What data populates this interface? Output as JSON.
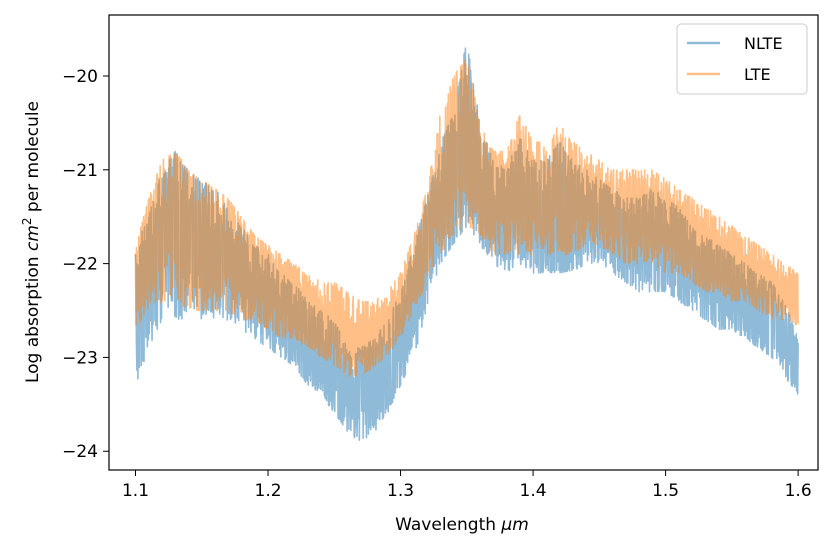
{
  "chart_data": {
    "type": "line",
    "title": "",
    "xlabel_prefix": "Wavelength ",
    "xlabel_unit": "μm",
    "ylabel_prefix": "Log absorption ",
    "ylabel_unit_base": "cm",
    "ylabel_unit_exp": "2",
    "ylabel_suffix": " per molecule",
    "xlim": [
      1.08,
      1.615
    ],
    "ylim": [
      -24.2,
      -19.35
    ],
    "xticks": [
      1.1,
      1.2,
      1.3,
      1.4,
      1.5,
      1.6
    ],
    "xtick_labels": [
      "1.1",
      "1.2",
      "1.3",
      "1.4",
      "1.5",
      "1.6"
    ],
    "yticks": [
      -24,
      -23,
      -22,
      -21,
      -20
    ],
    "ytick_labels": [
      "−24",
      "−23",
      "−22",
      "−21",
      "−20"
    ],
    "legend_position": "top-right",
    "series": [
      {
        "name": "NLTE",
        "color": "#1f77b4",
        "alpha": 0.5,
        "envelope_x": [
          1.1,
          1.11,
          1.12,
          1.13,
          1.14,
          1.15,
          1.16,
          1.17,
          1.18,
          1.19,
          1.2,
          1.21,
          1.22,
          1.23,
          1.24,
          1.25,
          1.26,
          1.27,
          1.28,
          1.29,
          1.3,
          1.31,
          1.32,
          1.33,
          1.34,
          1.35,
          1.36,
          1.37,
          1.38,
          1.39,
          1.4,
          1.41,
          1.42,
          1.43,
          1.44,
          1.45,
          1.46,
          1.47,
          1.48,
          1.49,
          1.5,
          1.51,
          1.52,
          1.53,
          1.54,
          1.55,
          1.56,
          1.57,
          1.58,
          1.59,
          1.6
        ],
        "upper": [
          -21.9,
          -21.4,
          -21.0,
          -20.8,
          -21.0,
          -21.1,
          -21.2,
          -21.4,
          -21.6,
          -21.8,
          -21.9,
          -22.1,
          -22.2,
          -22.4,
          -22.5,
          -22.6,
          -22.9,
          -22.9,
          -22.8,
          -22.6,
          -22.3,
          -21.8,
          -21.3,
          -20.7,
          -20.4,
          -19.6,
          -20.5,
          -20.9,
          -21.0,
          -20.6,
          -20.9,
          -20.9,
          -20.7,
          -20.9,
          -21.0,
          -21.1,
          -21.2,
          -21.3,
          -21.3,
          -21.2,
          -21.3,
          -21.4,
          -21.6,
          -21.7,
          -21.8,
          -21.9,
          -22.0,
          -22.1,
          -22.2,
          -22.4,
          -22.8
        ],
        "lower": [
          -23.3,
          -22.9,
          -22.6,
          -22.6,
          -22.6,
          -22.6,
          -22.6,
          -22.6,
          -22.7,
          -22.8,
          -22.9,
          -23.0,
          -23.1,
          -23.3,
          -23.4,
          -23.6,
          -23.8,
          -23.9,
          -23.8,
          -23.6,
          -23.3,
          -23.0,
          -22.5,
          -22.0,
          -21.8,
          -21.6,
          -21.8,
          -22.0,
          -22.1,
          -22.0,
          -22.1,
          -22.1,
          -22.1,
          -22.1,
          -22.0,
          -22.0,
          -22.1,
          -22.2,
          -22.3,
          -22.3,
          -22.3,
          -22.4,
          -22.5,
          -22.6,
          -22.7,
          -22.7,
          -22.8,
          -22.9,
          -23.0,
          -23.2,
          -23.4
        ]
      },
      {
        "name": "LTE",
        "color": "#ff7f0e",
        "alpha": 0.5,
        "envelope_x": [
          1.1,
          1.11,
          1.12,
          1.13,
          1.14,
          1.15,
          1.16,
          1.17,
          1.18,
          1.19,
          1.2,
          1.21,
          1.22,
          1.23,
          1.24,
          1.25,
          1.26,
          1.27,
          1.28,
          1.29,
          1.3,
          1.31,
          1.32,
          1.33,
          1.34,
          1.35,
          1.36,
          1.37,
          1.38,
          1.39,
          1.4,
          1.41,
          1.42,
          1.43,
          1.44,
          1.45,
          1.46,
          1.47,
          1.48,
          1.49,
          1.5,
          1.51,
          1.52,
          1.53,
          1.54,
          1.55,
          1.56,
          1.57,
          1.58,
          1.59,
          1.6
        ],
        "upper": [
          -21.8,
          -21.3,
          -20.9,
          -20.8,
          -21.0,
          -21.1,
          -21.2,
          -21.3,
          -21.5,
          -21.7,
          -21.8,
          -21.9,
          -22.0,
          -22.1,
          -22.2,
          -22.2,
          -22.3,
          -22.4,
          -22.4,
          -22.3,
          -22.1,
          -21.7,
          -21.2,
          -20.4,
          -20.0,
          -19.8,
          -20.5,
          -20.8,
          -20.8,
          -20.4,
          -20.7,
          -20.7,
          -20.5,
          -20.7,
          -20.8,
          -20.9,
          -21.0,
          -21.0,
          -21.0,
          -21.0,
          -21.1,
          -21.2,
          -21.3,
          -21.4,
          -21.5,
          -21.6,
          -21.7,
          -21.8,
          -21.9,
          -22.0,
          -22.1
        ],
        "lower": [
          -22.7,
          -22.5,
          -22.4,
          -22.4,
          -22.5,
          -22.5,
          -22.5,
          -22.5,
          -22.6,
          -22.6,
          -22.7,
          -22.8,
          -22.8,
          -22.9,
          -23.0,
          -23.1,
          -23.2,
          -23.2,
          -23.1,
          -23.0,
          -22.8,
          -22.5,
          -22.2,
          -21.9,
          -21.7,
          -21.6,
          -21.7,
          -21.9,
          -21.9,
          -21.9,
          -21.9,
          -21.9,
          -21.9,
          -21.9,
          -21.8,
          -21.8,
          -21.9,
          -22.0,
          -22.0,
          -22.0,
          -22.1,
          -22.1,
          -22.2,
          -22.3,
          -22.3,
          -22.4,
          -22.4,
          -22.5,
          -22.6,
          -22.6,
          -22.7
        ]
      }
    ]
  }
}
